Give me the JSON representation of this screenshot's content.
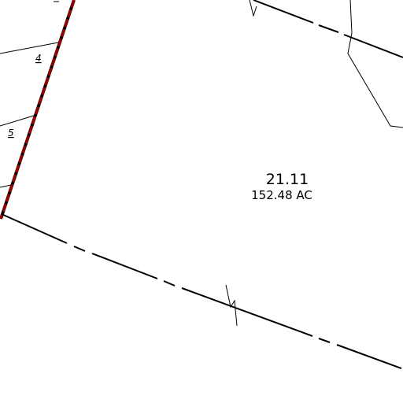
{
  "parcel": {
    "id": "21.11",
    "area": "152.48 AC"
  },
  "lots": [
    {
      "label": "4"
    },
    {
      "label": "5"
    }
  ],
  "colors": {
    "boundary": "#000000",
    "highlight_line": "#a00000",
    "background": "#ffffff"
  }
}
